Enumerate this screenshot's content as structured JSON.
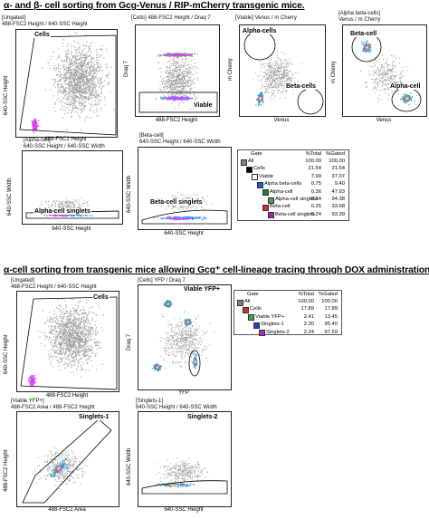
{
  "heading1": "α- and β- cell sorting from Gcg-Venus / RIP-mCherry transgenic mice.",
  "heading2": "α-cell sorting from transgenic mice allowing Gcg⁺ cell-lineage tracing through DOX administration.",
  "section1": {
    "p1": {
      "title": "[Ungated]",
      "subtitle": "488-FSC2 Height / 640-SSC Height",
      "gate": "Cells",
      "xlabel": "488-FSC2 Height",
      "ylabel": "640-SSC Height"
    },
    "p2": {
      "title": "[Cells] 488-FSC2 Height / Draq 7",
      "gate": "Viable",
      "xlabel": "488-FSC2 Height",
      "ylabel": "Draq 7"
    },
    "p3": {
      "title": "[Viable] Venus / m Cherry",
      "gate1": "Alpha-cells",
      "gate2": "Beta-cells",
      "xlabel": "Venus",
      "ylabel": "m Cherry"
    },
    "p4": {
      "title": "[Alpha beta-cells]",
      "subtitle": "Venus / m Cherry",
      "gate1": "Beta-cell",
      "gate2": "Alpha-cell",
      "xlabel": "Venus",
      "ylabel": "m Cherry"
    },
    "p5": {
      "title": "[Alpha-cell]",
      "subtitle": "640-SSC Height / 640-SSC Width",
      "gate": "Alpha-cell singlets",
      "xlabel": "640-SSC Height",
      "ylabel": "640-SSC Width"
    },
    "p6": {
      "title": "[Beta-cell]",
      "subtitle": "640-SSC Height / 640-SSC Width",
      "gate": "Beta-cell singlets",
      "xlabel": "640-SSC Height",
      "ylabel": "640-SSC Width"
    },
    "table": {
      "headers": [
        "Gate",
        "%Total",
        "%Gated"
      ],
      "rows": [
        {
          "name": "All",
          "total": "100.00",
          "gated": "100.00",
          "color": "#808080",
          "indent": 0
        },
        {
          "name": "Cells",
          "total": "21.54",
          "gated": "21.54",
          "color": "#000000",
          "indent": 1
        },
        {
          "name": "Viable",
          "total": "7.99",
          "gated": "37.07",
          "color": "#ffffff",
          "indent": 2
        },
        {
          "name": "Alpha beta-cells",
          "total": "0.75",
          "gated": "9.40",
          "color": "#1e5bd6",
          "indent": 3
        },
        {
          "name": "Alpha-cell",
          "total": "0.36",
          "gated": "47.93",
          "color": "#2e7d32",
          "indent": 4
        },
        {
          "name": "Alpha-cell singlets",
          "total": "0.34",
          "gated": "94.38",
          "color": "#43a047",
          "indent": 5
        },
        {
          "name": "Beta-cell",
          "total": "0.25",
          "gated": "33.68",
          "color": "#d32f2f",
          "indent": 4
        },
        {
          "name": "Beta-cell singlets",
          "total": "0.24",
          "gated": "93.39",
          "color": "#9c27b0",
          "indent": 5
        }
      ]
    }
  },
  "section2": {
    "p1": {
      "title": "[Ungated]",
      "subtitle": "488-FSC2 Height / 640-SSC Height",
      "gate": "Cells",
      "xlabel": "488-FSC2 Height",
      "ylabel": "640-SSC Height"
    },
    "p2": {
      "title": "[Cells] YFP / Draq 7",
      "gate": "Viable YFP+",
      "xlabel": "YFP",
      "ylabel": "Draq 7"
    },
    "p3": {
      "title": "[Viable YFP+]",
      "subtitle": "488-FSC2 Area / 488-FSC2 Height",
      "gate": "Singlets-1",
      "xlabel": "488-FSC2 Area",
      "ylabel": "488-FSC2 Height"
    },
    "p4": {
      "title": "[Singlets-1]",
      "subtitle": "640-SSC Height / 640-SSC Width",
      "gate": "Singlets-2",
      "xlabel": "640-SSC Height",
      "ylabel": "640-SSC Width"
    },
    "table": {
      "headers": [
        "Gate",
        "%Total",
        "%Gated"
      ],
      "rows": [
        {
          "name": "All",
          "total": "100.00",
          "gated": "100.00",
          "color": "#808080",
          "indent": 0
        },
        {
          "name": "Cells",
          "total": "17.89",
          "gated": "17.89",
          "color": "#d32f2f",
          "indent": 1
        },
        {
          "name": "Viable YFP+",
          "total": "2.41",
          "gated": "13.45",
          "color": "#43a047",
          "indent": 2
        },
        {
          "name": "Singlets-1",
          "total": "2.30",
          "gated": "95.40",
          "color": "#1e3fd6",
          "indent": 3
        },
        {
          "name": "Singlets-2",
          "total": "2.24",
          "gated": "97.69",
          "color": "#b02fb0",
          "indent": 4
        }
      ]
    }
  }
}
